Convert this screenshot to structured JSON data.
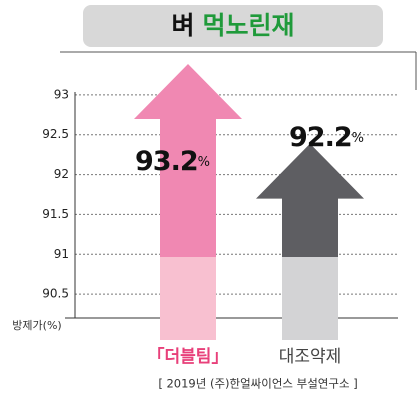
{
  "chart_data": {
    "type": "arrow-bar",
    "title": [
      "벼",
      "먹노린재"
    ],
    "y_label": "방제가(%)",
    "categories": [
      "「더블팀」",
      "대조약제"
    ],
    "values": [
      93.2,
      92.2
    ],
    "value_labels": [
      "93.2%",
      "92.2%"
    ],
    "colors": [
      "#f088b2",
      "#5e5e62"
    ],
    "light_colors": [
      "#f8c0d0",
      "#d3d3d5"
    ],
    "label_colors": [
      "#e8407a",
      "#444444"
    ],
    "ylim": [
      90.2,
      93.3
    ],
    "yticks": [
      {
        "value": 90.5,
        "label": "90.5"
      },
      91,
      {
        "value": 91.5,
        "label": "91.5"
      },
      92,
      {
        "value": 92.5,
        "label": "92.5"
      },
      93
    ],
    "grid": true,
    "source": "[ 2019년 (주)한얼싸이언스 부설연구소 ]"
  }
}
